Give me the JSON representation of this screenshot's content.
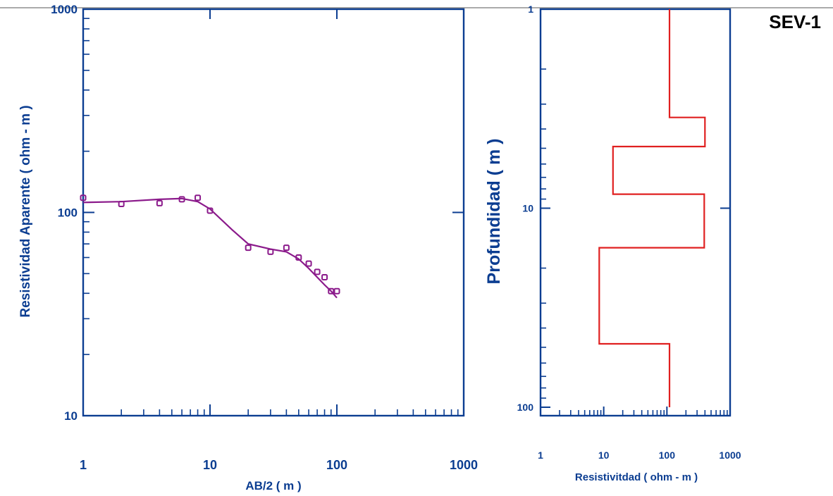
{
  "title": "SEV-1",
  "chart_data": [
    {
      "type": "scatter",
      "xlabel": "AB/2   ( m )",
      "ylabel": "Resistividad Aparente ( ohm - m )",
      "xscale": "log",
      "yscale": "log",
      "xlim": [
        1,
        1000
      ],
      "ylim": [
        10,
        1000
      ],
      "xticks": [
        "1",
        "10",
        "100",
        "1000"
      ],
      "yticks": [
        "10",
        "100",
        "1000"
      ],
      "series": [
        {
          "kind": "points",
          "x": [
            1,
            2,
            4,
            6,
            8,
            10,
            20,
            30,
            40,
            50,
            60,
            70,
            80,
            90,
            100
          ],
          "y": [
            118,
            110,
            111,
            116,
            118,
            102,
            67,
            64,
            67,
            60,
            56,
            51,
            48,
            41,
            41
          ]
        },
        {
          "kind": "line",
          "x": [
            1,
            2,
            4,
            6,
            8,
            10,
            15,
            20,
            30,
            40,
            50,
            60,
            70,
            80,
            90,
            100
          ],
          "y": [
            112,
            113,
            116,
            117,
            113,
            104,
            82,
            70,
            66,
            64,
            59,
            53,
            48,
            44,
            41,
            38
          ]
        }
      ]
    },
    {
      "type": "line",
      "xlabel": "Resistivitdad   ( ohm - m )",
      "ylabel": "Profundidad ( m )",
      "xscale": "log",
      "yscale": "log",
      "yinverted": true,
      "xlim": [
        1,
        1000
      ],
      "ylim": [
        1,
        100
      ],
      "xticks": [
        "1",
        "10",
        "100",
        "1000"
      ],
      "yticks": [
        "1",
        "10",
        "100"
      ],
      "series": [
        {
          "kind": "layer-model",
          "resistivity": [
            110,
            400,
            14,
            390,
            8.5,
            110
          ],
          "depth_top": [
            1,
            3.5,
            4.9,
            8.5,
            15.8,
            48
          ]
        }
      ]
    }
  ]
}
